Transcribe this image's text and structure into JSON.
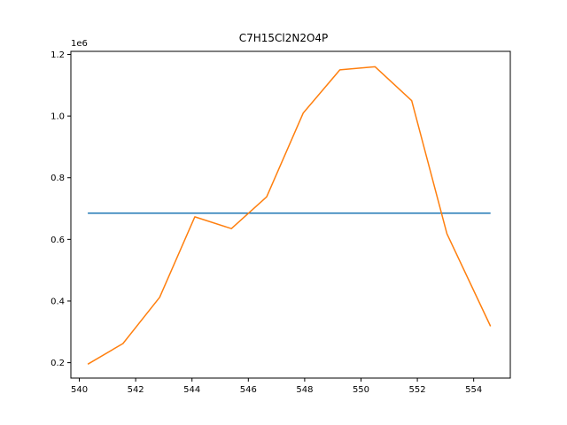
{
  "chart_data": {
    "type": "line",
    "title": "C7H15Cl2N2O4P",
    "xlabel": "",
    "ylabel": "",
    "y_offset_label": "1e6",
    "xlim": [
      539.7,
      555.3
    ],
    "ylim": [
      0.15,
      1.21
    ],
    "x_ticks": [
      540,
      542,
      544,
      546,
      548,
      550,
      552,
      554
    ],
    "y_ticks": [
      0.2,
      0.4,
      0.6,
      0.8,
      1.0,
      1.2
    ],
    "x_tick_labels": [
      "540",
      "542",
      "544",
      "546",
      "548",
      "550",
      "552",
      "554"
    ],
    "y_tick_labels": [
      "0.2",
      "0.4",
      "0.6",
      "0.8",
      "1.0",
      "1.2"
    ],
    "grid": false,
    "series": [
      {
        "color": "#1f77b4",
        "x": [
          540.3,
          554.6
        ],
        "y": [
          0.685,
          0.685
        ]
      },
      {
        "color": "#ff7f0e",
        "x": [
          540.3,
          541.55,
          542.85,
          544.1,
          545.4,
          546.65,
          547.95,
          549.25,
          550.5,
          551.8,
          553.05,
          554.6
        ],
        "y": [
          0.195,
          0.262,
          0.412,
          0.673,
          0.635,
          0.738,
          1.01,
          1.15,
          1.16,
          1.05,
          0.618,
          0.318
        ]
      }
    ]
  }
}
